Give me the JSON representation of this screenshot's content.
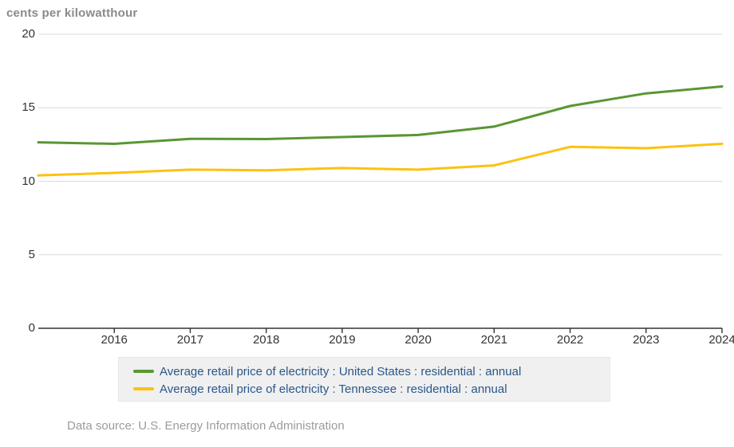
{
  "title": "cents per kilowatthour",
  "source_note": "Data source: U.S. Energy Information Administration",
  "colors": {
    "us_line": "#5A9632",
    "tn_line": "#FDC110",
    "grid": "#D9D9D9",
    "axis": "#333333",
    "tick_text": "#333333",
    "title_text": "#8A8A8A",
    "legend_bg": "#F0F0F0",
    "legend_text": "#2A578A",
    "source_text": "#9B9B9B"
  },
  "chart_data": {
    "type": "line",
    "title": "cents per kilowatthour",
    "xlabel": "",
    "ylabel": "cents per kilowatthour",
    "x": [
      2015,
      2016,
      2017,
      2018,
      2019,
      2020,
      2021,
      2022,
      2023,
      2024
    ],
    "x_tick_labels": [
      "2016",
      "2017",
      "2018",
      "2019",
      "2020",
      "2021",
      "2022",
      "2023",
      "2024"
    ],
    "y_ticks": [
      0,
      5,
      10,
      15,
      20
    ],
    "ylim": [
      0,
      20
    ],
    "xlim": [
      2015,
      2024
    ],
    "grid": "horizontal",
    "legend_position": "bottom",
    "series": [
      {
        "key": "united-states",
        "name": "Average retail price of electricity : United States : residential : annual",
        "color": "#5A9632",
        "values": [
          12.65,
          12.55,
          12.89,
          12.87,
          13.01,
          13.15,
          13.72,
          15.12,
          15.98,
          16.45
        ]
      },
      {
        "key": "tennessee",
        "name": "Average retail price of electricity : Tennessee : residential : annual",
        "color": "#FDC110",
        "values": [
          10.4,
          10.57,
          10.79,
          10.75,
          10.9,
          10.79,
          11.08,
          12.34,
          12.25,
          12.55
        ]
      }
    ]
  }
}
